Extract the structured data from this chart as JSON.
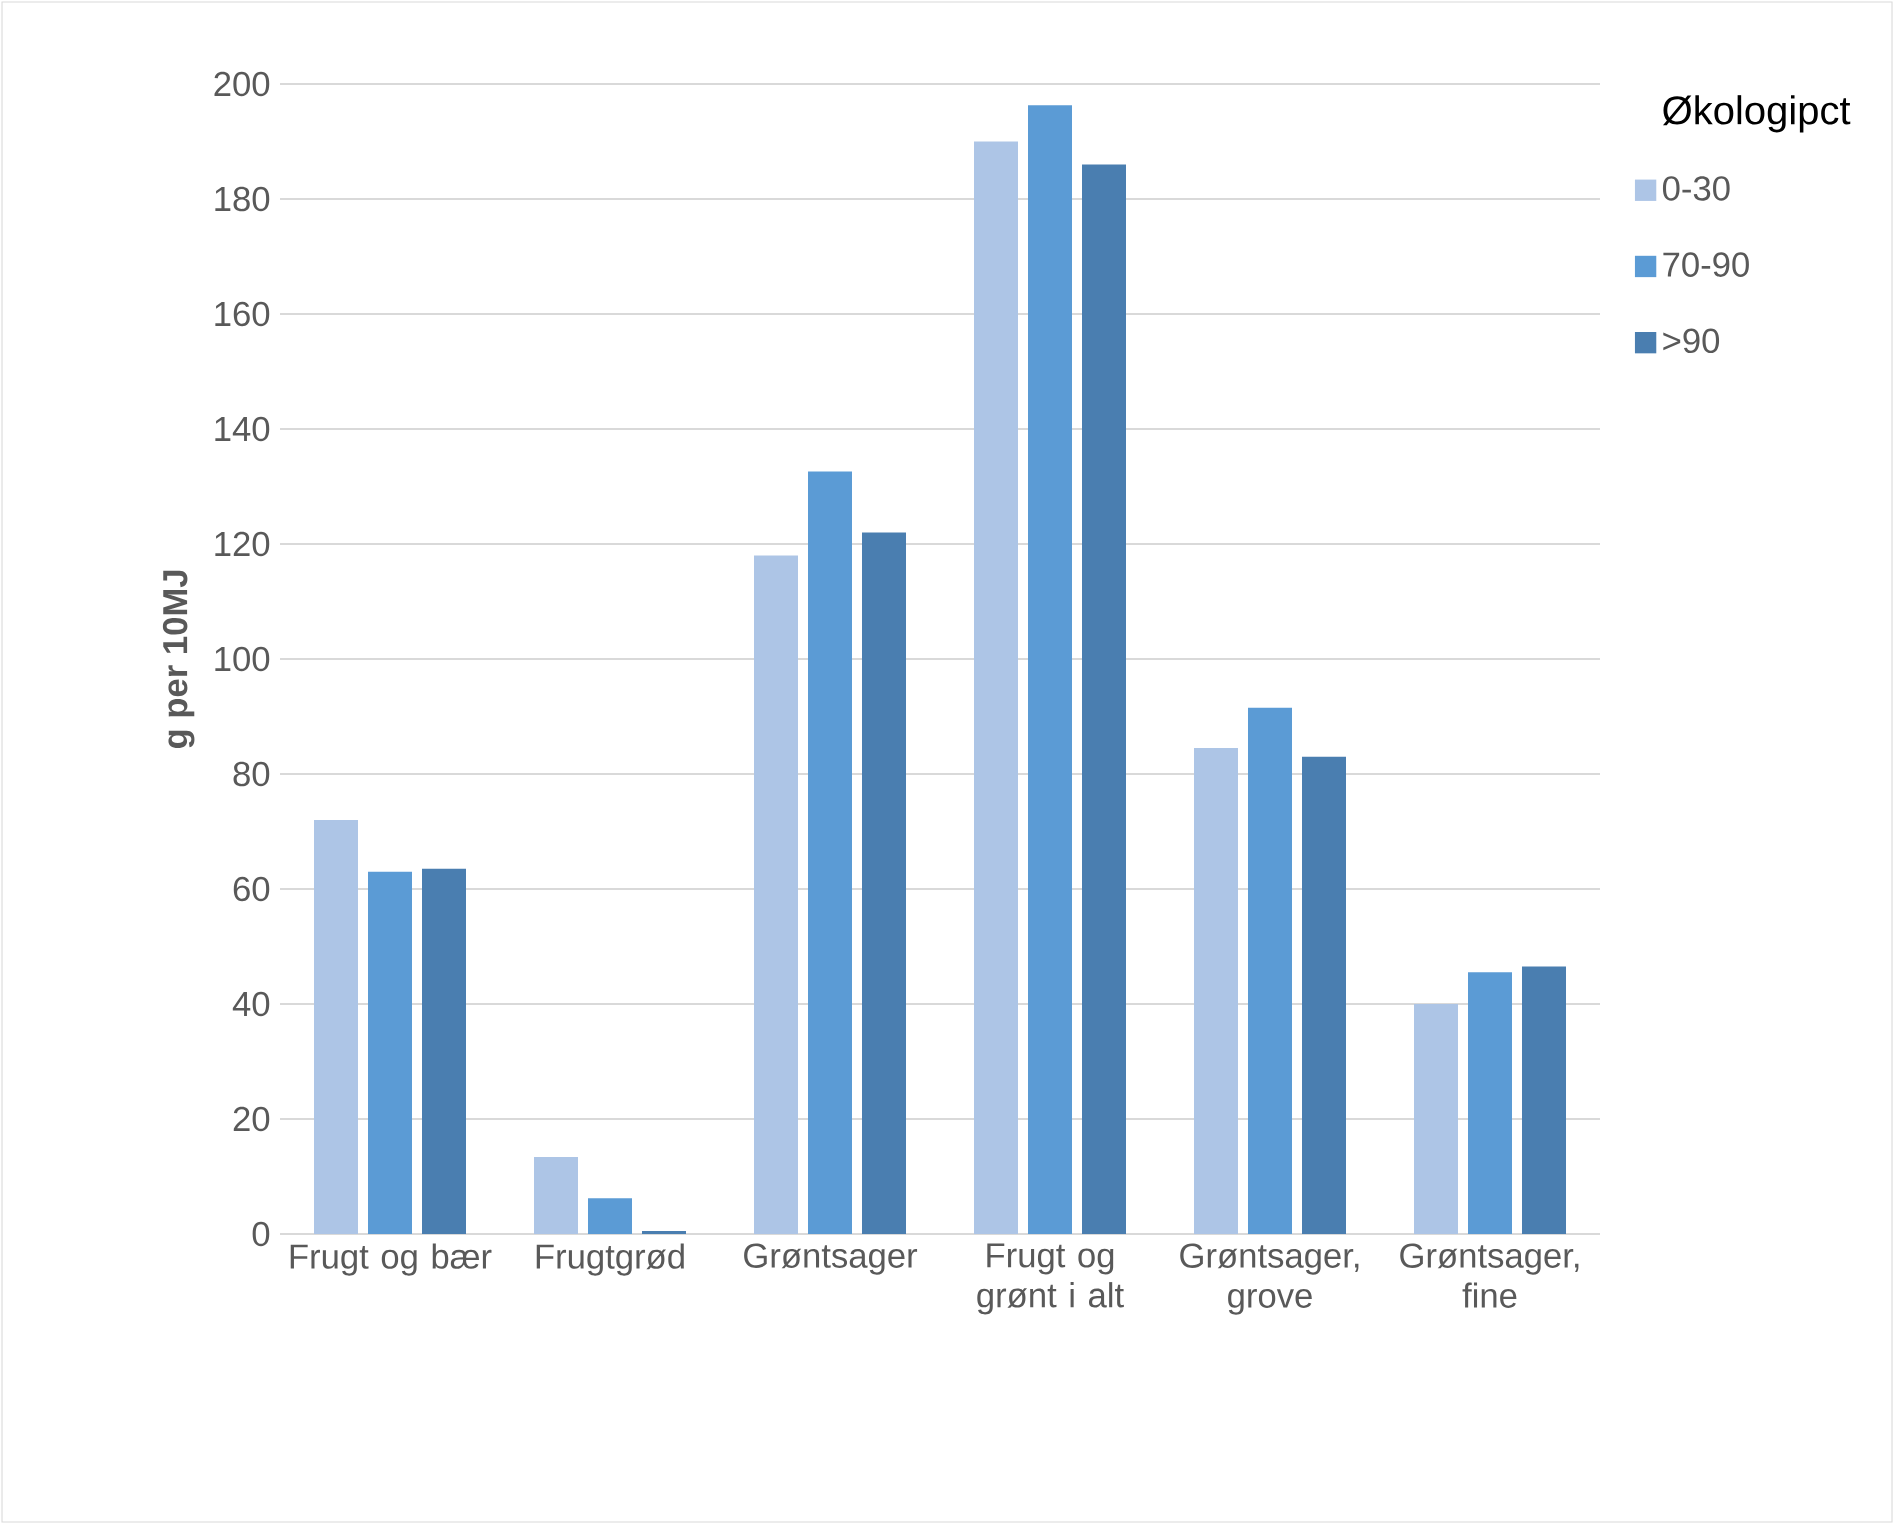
{
  "chart_data": {
    "type": "bar",
    "ylabel": "g per 10MJ",
    "legend_title": "Økologipct",
    "categories": [
      "Frugt og bær",
      "Frugtgrød",
      "Grøntsager",
      "Frugt og grønt i alt",
      "Grøntsager, grove",
      "Grøntsager, fine"
    ],
    "series": [
      {
        "name": "0-30",
        "color": "#adc5e6",
        "values": [
          72,
          13.4,
          118,
          190,
          84.5,
          40
        ]
      },
      {
        "name": "70-90",
        "color": "#5b9bd5",
        "values": [
          63,
          6.2,
          132.6,
          196.3,
          91.5,
          45.5
        ]
      },
      {
        "name": ">90",
        "color": "#4a7eb0",
        "values": [
          63.5,
          0.5,
          122,
          186,
          83,
          46.5
        ]
      }
    ],
    "ylim": [
      0,
      200
    ],
    "yticks": [
      0,
      20,
      40,
      60,
      80,
      100,
      120,
      140,
      160,
      180,
      200
    ],
    "grid": "y",
    "legend": "top right"
  }
}
